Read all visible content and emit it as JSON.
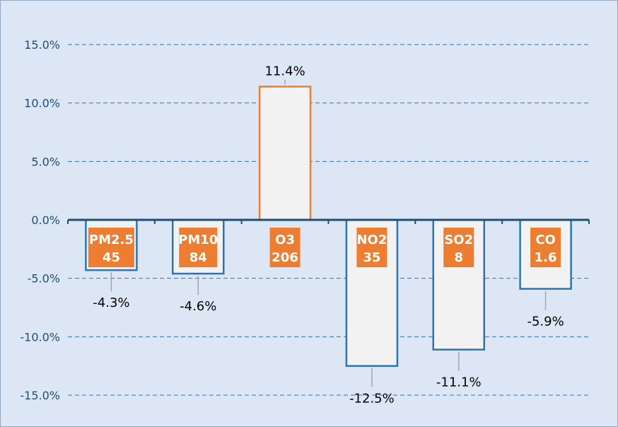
{
  "chart_data": {
    "type": "bar",
    "categories": [
      {
        "name": "PM2.5",
        "value_label": "45"
      },
      {
        "name": "PM10",
        "value_label": "84"
      },
      {
        "name": "O3",
        "value_label": "206"
      },
      {
        "name": "NO2",
        "value_label": "35"
      },
      {
        "name": "SO2",
        "value_label": "8"
      },
      {
        "name": "CO",
        "value_label": "1.6"
      }
    ],
    "values": [
      -4.3,
      -4.6,
      11.4,
      -12.5,
      -11.1,
      -5.9
    ],
    "data_labels": [
      "-4.3%",
      "-4.6%",
      "11.4%",
      "-12.5%",
      "-11.1%",
      "-5.9%"
    ],
    "y_ticks": [
      "15.0%",
      "10.0%",
      "5.0%",
      "0.0%",
      "-5.0%",
      "-10.0%",
      "-15.0%"
    ],
    "ylim": [
      -15,
      15
    ],
    "grid": true,
    "legend": false,
    "colors": {
      "background": "#dce6f4",
      "bar_fill": "#f2f2f2",
      "negative_border": "#2e74b5",
      "positive_border": "#ed7d31",
      "category_box": "#ed7d31",
      "axis": "#1f4e79",
      "grid": "#2e74b5",
      "leader_line": "#a6a6a6"
    }
  }
}
